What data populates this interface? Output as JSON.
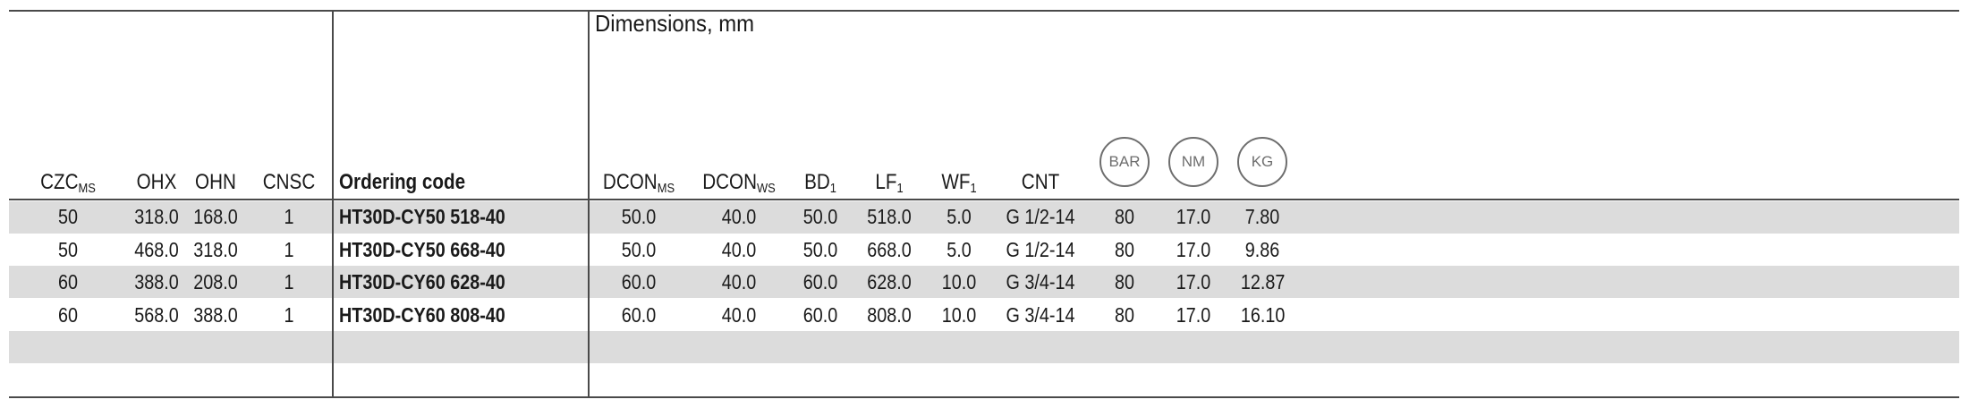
{
  "dimensions_title": "Dimensions, mm",
  "headers": {
    "czc": {
      "base": "CZC",
      "sub": "MS"
    },
    "ohx": "OHX",
    "ohn": "OHN",
    "cnsc": "CNSC",
    "ordering_code": "Ordering code",
    "dcon_ms": {
      "base": "DCON",
      "sub": "MS"
    },
    "dcon_ws": {
      "base": "DCON",
      "sub": "WS"
    },
    "bd1": {
      "base": "BD",
      "sub": "1"
    },
    "lf1": {
      "base": "LF",
      "sub": "1"
    },
    "wf1": {
      "base": "WF",
      "sub": "1"
    },
    "cnt": "CNT",
    "bar_icon": "BAR",
    "nm_icon": "NM",
    "kg_icon": "KG"
  },
  "rows": [
    {
      "czc": "50",
      "ohx": "318.0",
      "ohn": "168.0",
      "cnsc": "1",
      "code": "HT30D-CY50 518-40",
      "dcon_ms": "50.0",
      "dcon_ws": "40.0",
      "bd1": "50.0",
      "lf1": "518.0",
      "wf1": "5.0",
      "cnt": "G 1/2-14",
      "bar": "80",
      "nm": "17.0",
      "kg": "7.80"
    },
    {
      "czc": "50",
      "ohx": "468.0",
      "ohn": "318.0",
      "cnsc": "1",
      "code": "HT30D-CY50 668-40",
      "dcon_ms": "50.0",
      "dcon_ws": "40.0",
      "bd1": "50.0",
      "lf1": "668.0",
      "wf1": "5.0",
      "cnt": "G 1/2-14",
      "bar": "80",
      "nm": "17.0",
      "kg": "9.86"
    },
    {
      "czc": "60",
      "ohx": "388.0",
      "ohn": "208.0",
      "cnsc": "1",
      "code": "HT30D-CY60 628-40",
      "dcon_ms": "60.0",
      "dcon_ws": "40.0",
      "bd1": "60.0",
      "lf1": "628.0",
      "wf1": "10.0",
      "cnt": "G 3/4-14",
      "bar": "80",
      "nm": "17.0",
      "kg": "12.87"
    },
    {
      "czc": "60",
      "ohx": "568.0",
      "ohn": "388.0",
      "cnsc": "1",
      "code": "HT30D-CY60 808-40",
      "dcon_ms": "60.0",
      "dcon_ws": "40.0",
      "bd1": "60.0",
      "lf1": "808.0",
      "wf1": "10.0",
      "cnt": "G 3/4-14",
      "bar": "80",
      "nm": "17.0",
      "kg": "16.10"
    }
  ]
}
